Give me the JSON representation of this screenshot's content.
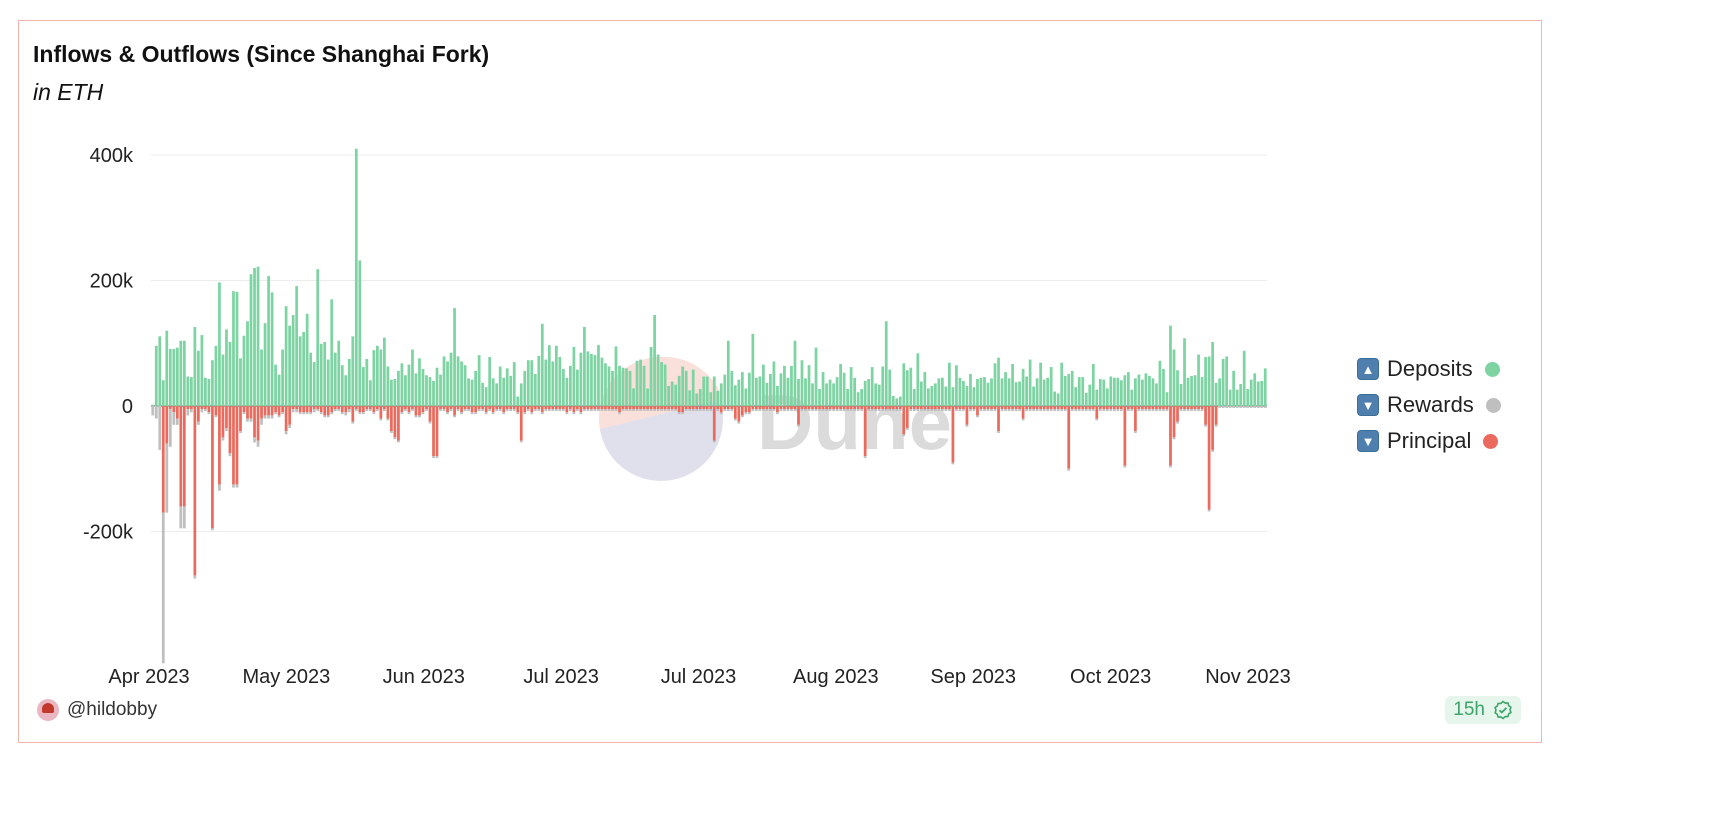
{
  "card": {
    "title": "Inflows & Outflows (Since Shanghai Fork)",
    "subtitle": "in ETH",
    "author": "@hildobby",
    "refresh": "15h",
    "watermark": "Dune"
  },
  "legend": [
    {
      "emoji": "▲",
      "label": "Deposits",
      "color": "#7dd3a2"
    },
    {
      "emoji": "▼",
      "label": "Rewards",
      "color": "#bfbfbf"
    },
    {
      "emoji": "▼",
      "label": "Principal",
      "color": "#ea6b5d"
    }
  ],
  "chart_data": {
    "type": "bar",
    "stacked": true,
    "ylim": [
      -390000,
      400000
    ],
    "yticks": [
      {
        "value": 400000,
        "label": "400k"
      },
      {
        "value": 200000,
        "label": "200k"
      },
      {
        "value": 0,
        "label": "0"
      },
      {
        "value": -200000,
        "label": "-200k"
      }
    ],
    "xticks": [
      "Apr 2023",
      "May 2023",
      "Jun 2023",
      "Jul 2023",
      "Jul 2023",
      "Aug 2023",
      "Sep 2023",
      "Oct 2023",
      "Nov 2023"
    ],
    "grid": true,
    "legend_position": "right",
    "series": [
      {
        "name": "Deposits",
        "color": "#7dd3a2",
        "values": [
          2000,
          96000,
          111000,
          41000,
          120000,
          91000,
          91000,
          93000,
          104000,
          104000,
          47000,
          46000,
          126000,
          88000,
          113000,
          45000,
          43000,
          73000,
          96000,
          197000,
          82000,
          122000,
          102000,
          183000,
          182000,
          76000,
          112000,
          135000,
          210000,
          220000,
          222000,
          90000,
          132000,
          207000,
          181000,
          66000,
          50000,
          90000,
          159000,
          128000,
          145000,
          191000,
          111000,
          118000,
          147000,
          85000,
          70000,
          218000,
          99000,
          102000,
          74000,
          170000,
          85000,
          104000,
          65000,
          49000,
          75000,
          111000,
          410000,
          232000,
          62000,
          75000,
          41000,
          89000,
          96000,
          90000,
          109000,
          63000,
          42000,
          43000,
          56000,
          68000,
          49000,
          66000,
          90000,
          52000,
          76000,
          59000,
          49000,
          46000,
          40000,
          61000,
          50000,
          79000,
          71000,
          85000,
          156000,
          79000,
          71000,
          65000,
          44000,
          42000,
          56000,
          81000,
          37000,
          30000,
          78000,
          44000,
          36000,
          63000,
          45000,
          60000,
          48000,
          70000,
          15000,
          36000,
          56000,
          73000,
          73000,
          51000,
          80000,
          131000,
          74000,
          97000,
          71000,
          96000,
          78000,
          59000,
          45000,
          64000,
          94000,
          58000,
          85000,
          126000,
          87000,
          83000,
          81000,
          97000,
          77000,
          68000,
          63000,
          56000,
          95000,
          64000,
          61000,
          60000,
          56000,
          28000,
          72000,
          74000,
          64000,
          28000,
          94000,
          145000,
          82000,
          70000,
          66000,
          32000,
          39000,
          34000,
          48000,
          63000,
          56000,
          25000,
          58000,
          20000,
          27000,
          47000,
          47000,
          22000,
          47000,
          24000,
          36000,
          50000,
          104000,
          56000,
          33000,
          42000,
          54000,
          28000,
          53000,
          115000,
          45000,
          47000,
          66000,
          37000,
          51000,
          71000,
          32000,
          52000,
          64000,
          45000,
          64000,
          104000,
          43000,
          73000,
          44000,
          65000,
          36000,
          93000,
          27000,
          54000,
          36000,
          42000,
          36000,
          46000,
          67000,
          53000,
          27000,
          62000,
          45000,
          22000,
          27000,
          40000,
          43000,
          62000,
          36000,
          34000,
          63000,
          135000,
          58000,
          16000,
          12000,
          15000,
          68000,
          57000,
          61000,
          27000,
          84000,
          39000,
          54000,
          28000,
          32000,
          36000,
          44000,
          45000,
          31000,
          69000,
          30000,
          65000,
          45000,
          40000,
          32000,
          51000,
          30000,
          43000,
          45000,
          46000,
          37000,
          44000,
          68000,
          77000,
          44000,
          54000,
          44000,
          67000,
          38000,
          39000,
          59000,
          47000,
          74000,
          31000,
          44000,
          69000,
          42000,
          45000,
          62000,
          23000,
          20000,
          69000,
          48000,
          51000,
          56000,
          30000,
          46000,
          46000,
          21000,
          34000,
          67000,
          26000,
          43000,
          42000,
          28000,
          47000,
          45000,
          45000,
          41000,
          49000,
          54000,
          26000,
          44000,
          50000,
          42000,
          52000,
          48000,
          44000,
          36000,
          72000,
          59000,
          22000,
          128000,
          90000,
          57000,
          35000,
          108000,
          45000,
          48000,
          49000,
          82000,
          46000,
          78000,
          79000,
          102000,
          37000,
          44000,
          75000,
          79000,
          26000,
          56000,
          26000,
          35000,
          88000,
          27000,
          42000,
          52000,
          39000,
          40000,
          60000
        ]
      },
      {
        "name": "Rewards",
        "color": "#bfbfbf",
        "values": [
          -15000,
          -20000,
          -70000,
          -240000,
          -110000,
          -60000,
          -20000,
          -10000,
          -35000,
          -35000,
          -10000,
          -5000,
          -5000,
          -5000,
          -5000,
          -3000,
          -3000,
          -3000,
          -3000,
          -10000,
          -5000,
          -5000,
          -5000,
          -5000,
          -5000,
          -3000,
          -3000,
          -5000,
          -5000,
          -8000,
          -10000,
          -10000,
          -5000,
          -5000,
          -5000,
          -3000,
          -3000,
          -3000,
          -5000,
          -5000,
          -5000,
          -5000,
          -3000,
          -3000,
          -3000,
          -3000,
          -5000,
          -3000,
          -3000,
          -3000,
          -3000,
          -3000,
          -3000,
          -3000,
          -3000,
          -5000,
          -5000,
          -3000,
          -3000,
          -3000,
          -3000,
          -3000,
          -3000,
          -3000,
          -3000,
          -3000,
          -3000,
          -3000,
          -3000,
          -3000,
          -3000,
          -3000,
          -3000,
          -3000,
          -3000,
          -3000,
          -3000,
          -3000,
          -3000,
          -3000,
          -3000,
          -3000,
          -3000,
          -3000,
          -3000,
          -3000,
          -3000,
          -3000,
          -3000,
          -3000,
          -3000,
          -3000,
          -3000,
          -3000,
          -3000,
          -3000,
          -3000,
          -3000,
          -3000,
          -3000,
          -3000,
          -3000,
          -3000,
          -3000,
          -3000,
          -3000,
          -3000,
          -3000,
          -3000,
          -3000,
          -3000,
          -3000,
          -3000,
          -3000,
          -3000,
          -3000,
          -3000,
          -3000,
          -3000,
          -3000,
          -3000,
          -3000,
          -3000,
          -3000,
          -3000,
          -3000,
          -3000,
          -3000,
          -3000,
          -3000,
          -3000,
          -3000,
          -3000,
          -3000,
          -3000,
          -3000,
          -3000,
          -3000,
          -3000,
          -3000,
          -3000,
          -3000,
          -3000,
          -3000,
          -3000,
          -3000,
          -3000,
          -3000,
          -3000,
          -3000,
          -3000,
          -3000,
          -3000,
          -3000,
          -3000,
          -3000,
          -3000,
          -3000,
          -3000,
          -3000,
          -3000,
          -3000,
          -3000,
          -3000,
          -3000,
          -3000,
          -3000,
          -3000,
          -3000,
          -3000,
          -3000,
          -3000,
          -3000,
          -3000,
          -3000,
          -3000,
          -3000,
          -3000,
          -3000,
          -3000,
          -3000,
          -3000,
          -3000,
          -3000,
          -3000,
          -3000,
          -3000,
          -3000,
          -3000,
          -3000,
          -3000,
          -3000,
          -3000,
          -3000,
          -3000,
          -3000,
          -3000,
          -3000,
          -3000,
          -3000,
          -3000,
          -3000,
          -3000,
          -3000,
          -3000,
          -3000,
          -3000,
          -3000,
          -3000,
          -3000,
          -3000,
          -3000,
          -3000,
          -3000,
          -3000,
          -3000,
          -3000,
          -3000,
          -3000,
          -3000,
          -3000,
          -3000,
          -3000,
          -3000,
          -3000,
          -3000,
          -3000,
          -3000,
          -3000,
          -3000,
          -3000,
          -3000,
          -3000,
          -3000,
          -3000,
          -3000,
          -3000,
          -3000,
          -3000,
          -3000,
          -3000,
          -3000,
          -3000,
          -3000,
          -3000,
          -3000,
          -3000,
          -3000,
          -3000,
          -3000,
          -3000,
          -3000,
          -3000,
          -3000,
          -3000,
          -3000,
          -3000,
          -3000,
          -3000,
          -3000,
          -3000,
          -3000,
          -3000,
          -3000,
          -3000,
          -3000,
          -3000,
          -3000,
          -3000,
          -3000,
          -3000,
          -3000,
          -3000,
          -3000,
          -3000,
          -3000,
          -3000,
          -3000,
          -3000,
          -3000,
          -3000,
          -3000,
          -3000,
          -3000,
          -3000,
          -3000,
          -3000,
          -3000,
          -3000,
          -3000,
          -3000,
          -3000,
          -3000,
          -3000,
          -3000,
          -3000,
          -3000,
          -3000,
          -3000,
          -3000,
          -3000,
          -3000,
          -3000,
          -3000,
          -3000,
          -3000,
          -3000,
          -3000,
          -3000,
          -3000,
          -3000,
          -3000,
          -3000,
          -3000,
          -3000,
          -3000,
          -3000,
          -3000,
          -3000,
          -3000,
          -3000,
          -3000,
          -3000,
          -3000,
          -3000,
          -3000,
          -3000
        ]
      },
      {
        "name": "Principal",
        "color": "#ea6b5d",
        "values": [
          0,
          0,
          0,
          -170000,
          -60000,
          -5000,
          -10000,
          -20000,
          -160000,
          -160000,
          -5000,
          -5000,
          -270000,
          -25000,
          -5000,
          -5000,
          -10000,
          -195000,
          -15000,
          -125000,
          -50000,
          -35000,
          -75000,
          -125000,
          -125000,
          -40000,
          -10000,
          -20000,
          -20000,
          -50000,
          -55000,
          -20000,
          -15000,
          -15000,
          -15000,
          -10000,
          -15000,
          -10000,
          -40000,
          -30000,
          -5000,
          -5000,
          -10000,
          -10000,
          -10000,
          -10000,
          -5000,
          -5000,
          -10000,
          -15000,
          -15000,
          -10000,
          -5000,
          -5000,
          -10000,
          -10000,
          -5000,
          -25000,
          -5000,
          -10000,
          -10000,
          -5000,
          -5000,
          -10000,
          -5000,
          -20000,
          -5000,
          -20000,
          -40000,
          -50000,
          -55000,
          -10000,
          -5000,
          -10000,
          -5000,
          -15000,
          -15000,
          -10000,
          -5000,
          -25000,
          -80000,
          -80000,
          -5000,
          -5000,
          -10000,
          -5000,
          -15000,
          -5000,
          -10000,
          -5000,
          -5000,
          -10000,
          -10000,
          -5000,
          -5000,
          -10000,
          -5000,
          -10000,
          -5000,
          -5000,
          -10000,
          -5000,
          -5000,
          -5000,
          -10000,
          -55000,
          -10000,
          -5000,
          -10000,
          -5000,
          -5000,
          -10000,
          -5000,
          -5000,
          -5000,
          -5000,
          -5000,
          -5000,
          -10000,
          -5000,
          -10000,
          -5000,
          -10000,
          -5000,
          -5000,
          -5000,
          -5000,
          -5000,
          -5000,
          -5000,
          -5000,
          -5000,
          -5000,
          -10000,
          -5000,
          -5000,
          -5000,
          -5000,
          -5000,
          -5000,
          -5000,
          -5000,
          -5000,
          -5000,
          -5000,
          -5000,
          -5000,
          -5000,
          -5000,
          -5000,
          -10000,
          -10000,
          -5000,
          -5000,
          -5000,
          -5000,
          -5000,
          -5000,
          -5000,
          -5000,
          -55000,
          -5000,
          -10000,
          -5000,
          -5000,
          -5000,
          -20000,
          -25000,
          -15000,
          -10000,
          -10000,
          -5000,
          -5000,
          -5000,
          -5000,
          -5000,
          -5000,
          -5000,
          -10000,
          -5000,
          -5000,
          -5000,
          -5000,
          -5000,
          -30000,
          -5000,
          -5000,
          -5000,
          -5000,
          -5000,
          -5000,
          -5000,
          -5000,
          -5000,
          -5000,
          -5000,
          -5000,
          -5000,
          -5000,
          -5000,
          -5000,
          -5000,
          -5000,
          -80000,
          -5000,
          -5000,
          -5000,
          -5000,
          -5000,
          -5000,
          -5000,
          -5000,
          -5000,
          -5000,
          -45000,
          -35000,
          -5000,
          -5000,
          -5000,
          -5000,
          -5000,
          -5000,
          -5000,
          -5000,
          -5000,
          -5000,
          -5000,
          -5000,
          -90000,
          -5000,
          -5000,
          -5000,
          -30000,
          -5000,
          -5000,
          -15000,
          -5000,
          -5000,
          -5000,
          -5000,
          -5000,
          -40000,
          -5000,
          -5000,
          -5000,
          -5000,
          -5000,
          -5000,
          -20000,
          -5000,
          -5000,
          -5000,
          -5000,
          -5000,
          -5000,
          -5000,
          -5000,
          -5000,
          -5000,
          -5000,
          -5000,
          -100000,
          -5000,
          -5000,
          -5000,
          -5000,
          -5000,
          -5000,
          -5000,
          -20000,
          -5000,
          -5000,
          -5000,
          -5000,
          -5000,
          -5000,
          -5000,
          -95000,
          -5000,
          -5000,
          -40000,
          -5000,
          -5000,
          -5000,
          -5000,
          -5000,
          -5000,
          -5000,
          -5000,
          -5000,
          -95000,
          -50000,
          -25000,
          -5000,
          -5000,
          -5000,
          -5000,
          -5000,
          -5000,
          -5000,
          -30000,
          -165000,
          -70000,
          -30000
        ]
      }
    ]
  }
}
